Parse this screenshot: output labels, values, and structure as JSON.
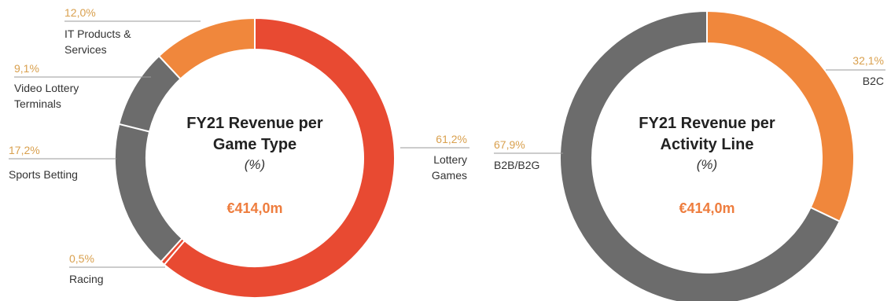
{
  "colors": {
    "red": "#e84a32",
    "orange": "#f0873c",
    "gray": "#6c6c6c",
    "percent_text": "#d9a04e",
    "total_text": "#ee7d3e",
    "leader_line": "#9a9a9a"
  },
  "chart_data": [
    {
      "type": "pie",
      "donut": true,
      "title_line1": "FY21 Revenue per",
      "title_line2": "Game Type",
      "unit": "(%)",
      "total": "€414,0m",
      "slices": [
        {
          "label_lines": [
            "Lottery",
            "Games"
          ],
          "value": 61.2,
          "value_label": "61,2%",
          "color": "#e84a32"
        },
        {
          "label_lines": [
            "Racing"
          ],
          "value": 0.5,
          "value_label": "0,5%",
          "color": "#e84a32"
        },
        {
          "label_lines": [
            "Sports Betting"
          ],
          "value": 17.2,
          "value_label": "17,2%",
          "color": "#6c6c6c"
        },
        {
          "label_lines": [
            "Video Lottery",
            "Terminals"
          ],
          "value": 9.1,
          "value_label": "9,1%",
          "color": "#6c6c6c"
        },
        {
          "label_lines": [
            "IT Products &",
            "Services"
          ],
          "value": 12.0,
          "value_label": "12,0%",
          "color": "#f0873c"
        }
      ]
    },
    {
      "type": "pie",
      "donut": true,
      "title_line1": "FY21 Revenue per",
      "title_line2": "Activity Line",
      "unit": "(%)",
      "total": "€414,0m",
      "slices": [
        {
          "label_lines": [
            "B2C"
          ],
          "value": 32.1,
          "value_label": "32,1%",
          "color": "#f0873c"
        },
        {
          "label_lines": [
            "B2B/B2G"
          ],
          "value": 67.9,
          "value_label": "67,9%",
          "color": "#6c6c6c"
        }
      ]
    }
  ]
}
